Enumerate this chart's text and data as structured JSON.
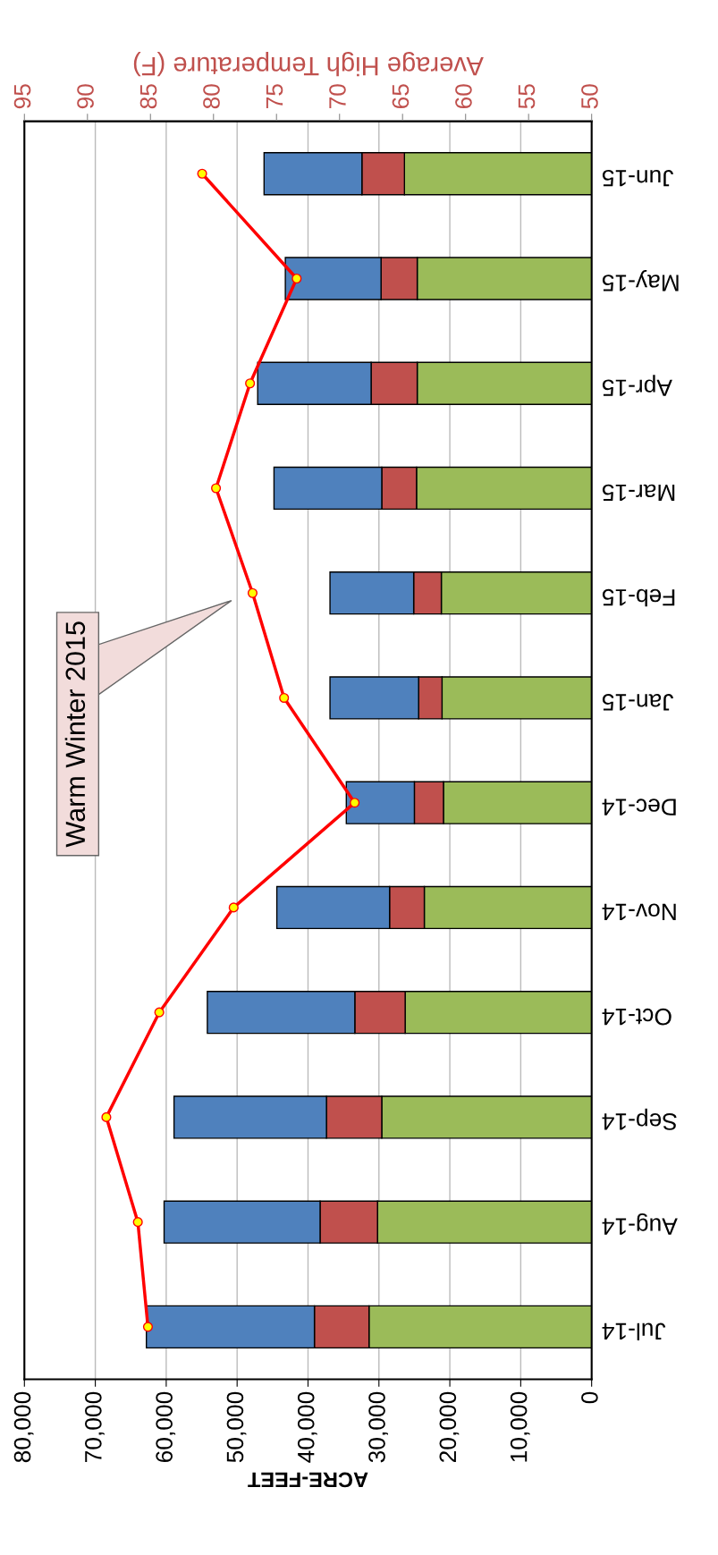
{
  "chart_data": {
    "type": "bar",
    "orientation": "horizontal",
    "stacked": true,
    "categories": [
      "Jun-15",
      "May-15",
      "Apr-15",
      "Mar-15",
      "Feb-15",
      "Jan-15",
      "Dec-14",
      "Nov-14",
      "Oct-14",
      "Sep-14",
      "Aug-14",
      "Jul-14"
    ],
    "series": [
      {
        "color": "#9bbb59",
        "values": [
          26400,
          24600,
          24600,
          24700,
          21200,
          21100,
          20900,
          23600,
          26300,
          29600,
          30200,
          31400
        ]
      },
      {
        "color": "#c0504d",
        "values": [
          6000,
          5100,
          6500,
          4900,
          3900,
          3300,
          4100,
          4900,
          7100,
          7800,
          8100,
          7700
        ]
      },
      {
        "color": "#4f81bd",
        "values": [
          13800,
          13500,
          16000,
          15200,
          11800,
          12500,
          9600,
          15900,
          20800,
          21500,
          22000,
          23700
        ]
      },
      {
        "type": "line",
        "axis": "x2",
        "color": "#ff0000",
        "marker": "circle",
        "values": [
          80.9,
          73.4,
          77.1,
          79.8,
          76.9,
          74.4,
          68.8,
          78.4,
          84.3,
          88.5,
          86.0,
          85.2
        ]
      }
    ],
    "xlabel": "ACRE-FEET",
    "x2label": "Average High Temperature (F)",
    "xlim": [
      80000,
      0
    ],
    "xticks": [
      {
        "value": 80000,
        "label": "80,000"
      },
      {
        "value": 70000,
        "label": "70,000"
      },
      {
        "value": 60000,
        "label": "60,000"
      },
      {
        "value": 50000,
        "label": "50,000"
      },
      {
        "value": 40000,
        "label": "40,000"
      },
      {
        "value": 30000,
        "label": "30,000"
      },
      {
        "value": 20000,
        "label": "20,000"
      },
      {
        "value": 10000,
        "label": "10,000"
      },
      0
    ],
    "x2lim": [
      95,
      50
    ],
    "x2ticks": [
      95,
      90,
      85,
      80,
      75,
      70,
      65,
      60,
      55,
      50
    ],
    "grid": "x",
    "legend": false,
    "annotations": [
      "Warm Winter 2015"
    ]
  }
}
